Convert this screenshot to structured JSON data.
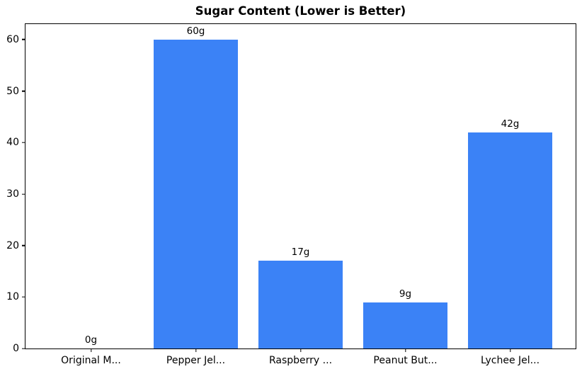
{
  "chart_data": {
    "type": "bar",
    "title": "Sugar Content (Lower is Better)",
    "categories": [
      "Original M...",
      "Pepper Jel...",
      "Raspberry ...",
      "Peanut But...",
      "Lychee Jel..."
    ],
    "values": [
      0,
      60,
      17,
      9,
      42
    ],
    "bar_labels": [
      "0g",
      "60g",
      "17g",
      "9g",
      "42g"
    ],
    "xlabel": "",
    "ylabel": "",
    "yticks": [
      0,
      10,
      20,
      30,
      40,
      50,
      60
    ],
    "ylim": [
      0,
      63
    ],
    "bar_color": "#3b82f6",
    "grid": false,
    "legend": null,
    "plot_border_color": "#000000",
    "background_color": "#ffffff"
  }
}
